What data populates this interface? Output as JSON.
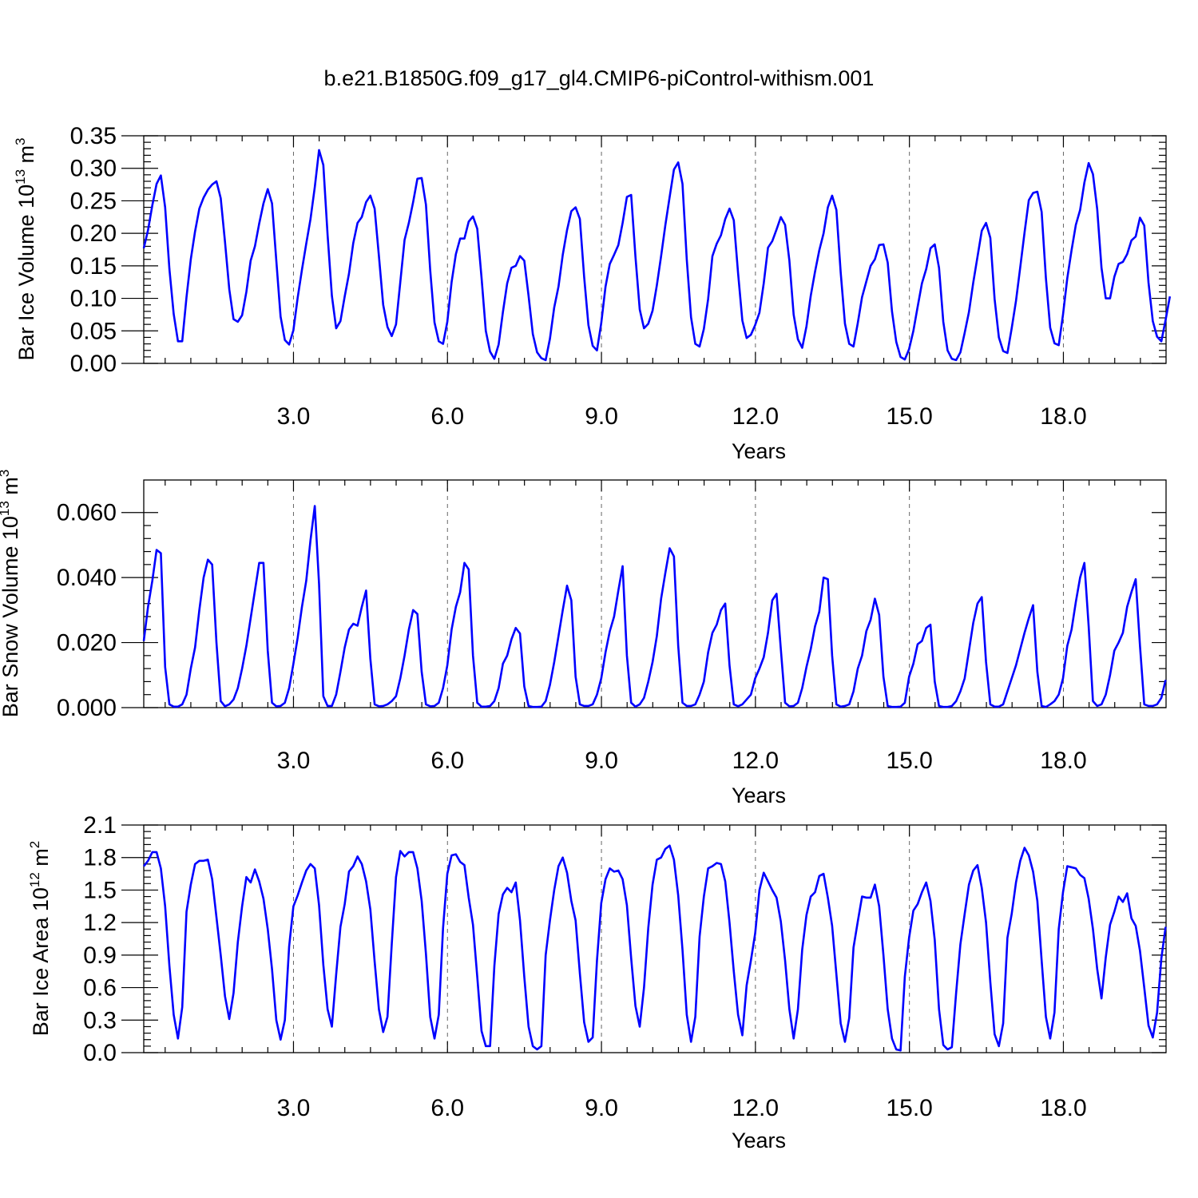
{
  "title": "b.e21.B1850G.f09_g17_gl4.CMIP6-piControl-withism.001",
  "colors": {
    "series": "#0000ff"
  },
  "chart_data": [
    {
      "type": "line",
      "ylabel": {
        "text": "Bar Ice Volume 10",
        "exp": "13",
        "unit_text": " m",
        "unit_exp": "3"
      },
      "xlabel": "Years",
      "xlim": [
        0.083,
        20.0
      ],
      "ylim": [
        0,
        0.35
      ],
      "xticks": [
        3,
        6,
        9,
        12,
        15,
        18
      ],
      "xtick_labels": [
        "3.0",
        "6.0",
        "9.0",
        "12.0",
        "15.0",
        "18.0"
      ],
      "yticks": [
        0,
        0.05,
        0.1,
        0.15,
        0.2,
        0.25,
        0.3,
        0.35
      ],
      "ytick_labels": [
        "0.00",
        "0.05",
        "0.10",
        "0.15",
        "0.20",
        "0.25",
        "0.30",
        "0.35"
      ],
      "grid": "vertical dashed at major x ticks",
      "start_year": 0.083,
      "step": 0.0833,
      "values": [
        0.177,
        0.205,
        0.243,
        0.276,
        0.289,
        0.24,
        0.145,
        0.076,
        0.034,
        0.034,
        0.102,
        0.16,
        0.203,
        0.238,
        0.255,
        0.267,
        0.275,
        0.28,
        0.254,
        0.187,
        0.114,
        0.068,
        0.064,
        0.074,
        0.11,
        0.158,
        0.18,
        0.215,
        0.246,
        0.268,
        0.246,
        0.158,
        0.072,
        0.036,
        0.029,
        0.051,
        0.101,
        0.144,
        0.184,
        0.222,
        0.271,
        0.328,
        0.305,
        0.197,
        0.104,
        0.054,
        0.065,
        0.103,
        0.138,
        0.185,
        0.216,
        0.225,
        0.248,
        0.258,
        0.238,
        0.165,
        0.09,
        0.056,
        0.042,
        0.06,
        0.125,
        0.19,
        0.216,
        0.248,
        0.284,
        0.285,
        0.244,
        0.143,
        0.063,
        0.034,
        0.03,
        0.064,
        0.125,
        0.168,
        0.192,
        0.192,
        0.218,
        0.226,
        0.207,
        0.132,
        0.05,
        0.018,
        0.007,
        0.029,
        0.079,
        0.123,
        0.147,
        0.15,
        0.165,
        0.158,
        0.104,
        0.045,
        0.017,
        0.008,
        0.005,
        0.038,
        0.086,
        0.118,
        0.167,
        0.205,
        0.234,
        0.24,
        0.222,
        0.133,
        0.059,
        0.027,
        0.02,
        0.062,
        0.118,
        0.153,
        0.167,
        0.182,
        0.216,
        0.256,
        0.259,
        0.164,
        0.083,
        0.054,
        0.061,
        0.081,
        0.12,
        0.165,
        0.213,
        0.256,
        0.298,
        0.309,
        0.276,
        0.16,
        0.071,
        0.03,
        0.026,
        0.053,
        0.099,
        0.165,
        0.184,
        0.197,
        0.222,
        0.238,
        0.22,
        0.139,
        0.066,
        0.039,
        0.044,
        0.059,
        0.078,
        0.123,
        0.178,
        0.188,
        0.206,
        0.225,
        0.213,
        0.158,
        0.075,
        0.037,
        0.024,
        0.057,
        0.104,
        0.141,
        0.174,
        0.2,
        0.24,
        0.258,
        0.236,
        0.14,
        0.061,
        0.03,
        0.026,
        0.062,
        0.102,
        0.126,
        0.15,
        0.16,
        0.182,
        0.183,
        0.155,
        0.08,
        0.033,
        0.01,
        0.006,
        0.022,
        0.05,
        0.087,
        0.123,
        0.145,
        0.177,
        0.183,
        0.147,
        0.064,
        0.02,
        0.007,
        0.005,
        0.017,
        0.047,
        0.079,
        0.124,
        0.164,
        0.204,
        0.216,
        0.193,
        0.099,
        0.04,
        0.019,
        0.016,
        0.054,
        0.096,
        0.148,
        0.201,
        0.251,
        0.262,
        0.264,
        0.233,
        0.131,
        0.055,
        0.031,
        0.028,
        0.075,
        0.131,
        0.174,
        0.213,
        0.236,
        0.278,
        0.308,
        0.291,
        0.237,
        0.147,
        0.1,
        0.1,
        0.133,
        0.153,
        0.156,
        0.168,
        0.189,
        0.195,
        0.224,
        0.212,
        0.124,
        0.065,
        0.041,
        0.034,
        0.067,
        0.103
      ]
    },
    {
      "type": "line",
      "ylabel": {
        "text": "Bar Snow Volume 10",
        "exp": "13",
        "unit_text": " m",
        "unit_exp": "3"
      },
      "xlabel": "Years",
      "xlim": [
        0.083,
        20.0
      ],
      "ylim": [
        0,
        0.07
      ],
      "xticks": [
        3,
        6,
        9,
        12,
        15,
        18
      ],
      "xtick_labels": [
        "3.0",
        "6.0",
        "9.0",
        "12.0",
        "15.0",
        "18.0"
      ],
      "yticks": [
        0,
        0.02,
        0.04,
        0.06
      ],
      "ytick_labels": [
        "0.000",
        "0.020",
        "0.040",
        "0.060"
      ],
      "grid": "vertical dashed at major x ticks",
      "start_year": 0.083,
      "step": 0.0833,
      "values": [
        0.0205,
        0.031,
        0.039,
        0.0485,
        0.0475,
        0.0125,
        0.001,
        0.0003,
        0.0003,
        0.001,
        0.004,
        0.012,
        0.0185,
        0.03,
        0.04,
        0.0455,
        0.044,
        0.02,
        0.002,
        0.0004,
        0.001,
        0.0025,
        0.006,
        0.012,
        0.019,
        0.0275,
        0.036,
        0.0445,
        0.0445,
        0.0175,
        0.0015,
        0.0004,
        0.0005,
        0.0015,
        0.006,
        0.0135,
        0.0215,
        0.031,
        0.039,
        0.0515,
        0.062,
        0.038,
        0.0035,
        0.0005,
        0.0005,
        0.004,
        0.011,
        0.0185,
        0.024,
        0.0258,
        0.0252,
        0.031,
        0.036,
        0.015,
        0.001,
        0.0004,
        0.0005,
        0.001,
        0.002,
        0.0035,
        0.009,
        0.016,
        0.024,
        0.03,
        0.0288,
        0.011,
        0.001,
        0.0004,
        0.0005,
        0.0015,
        0.006,
        0.013,
        0.024,
        0.031,
        0.0355,
        0.0445,
        0.0425,
        0.016,
        0.0015,
        0.0003,
        0.0003,
        0.0005,
        0.002,
        0.006,
        0.0135,
        0.016,
        0.021,
        0.0245,
        0.0228,
        0.0065,
        0.0005,
        0.0002,
        0.0002,
        0.0003,
        0.002,
        0.007,
        0.014,
        0.022,
        0.03,
        0.0375,
        0.033,
        0.0095,
        0.001,
        0.0005,
        0.0005,
        0.001,
        0.004,
        0.009,
        0.017,
        0.0235,
        0.028,
        0.036,
        0.0435,
        0.016,
        0.0015,
        0.0003,
        0.001,
        0.003,
        0.008,
        0.014,
        0.022,
        0.0335,
        0.0415,
        0.049,
        0.0465,
        0.019,
        0.0015,
        0.0005,
        0.0005,
        0.001,
        0.004,
        0.008,
        0.017,
        0.023,
        0.0255,
        0.03,
        0.032,
        0.013,
        0.001,
        0.0004,
        0.001,
        0.0025,
        0.004,
        0.009,
        0.012,
        0.0155,
        0.023,
        0.033,
        0.035,
        0.018,
        0.0015,
        0.0004,
        0.0005,
        0.0015,
        0.006,
        0.0125,
        0.018,
        0.025,
        0.0295,
        0.04,
        0.0395,
        0.016,
        0.001,
        0.0003,
        0.0005,
        0.001,
        0.005,
        0.012,
        0.016,
        0.0235,
        0.027,
        0.0335,
        0.0285,
        0.0095,
        0.0005,
        0.0002,
        0.0002,
        0.0003,
        0.0015,
        0.0095,
        0.0135,
        0.0195,
        0.0205,
        0.0245,
        0.0255,
        0.008,
        0.0005,
        0.0002,
        0.0002,
        0.0005,
        0.002,
        0.005,
        0.009,
        0.0175,
        0.026,
        0.032,
        0.034,
        0.014,
        0.001,
        0.0003,
        0.0003,
        0.001,
        0.005,
        0.009,
        0.013,
        0.018,
        0.023,
        0.0275,
        0.0315,
        0.011,
        0.0005,
        0.0002,
        0.001,
        0.002,
        0.004,
        0.009,
        0.019,
        0.024,
        0.0325,
        0.04,
        0.0445,
        0.025,
        0.002,
        0.0005,
        0.001,
        0.004,
        0.01,
        0.0175,
        0.02,
        0.023,
        0.031,
        0.0355,
        0.0395,
        0.019,
        0.001,
        0.0005,
        0.0005,
        0.001,
        0.003,
        0.0085
      ]
    },
    {
      "type": "line",
      "ylabel": {
        "text": "Bar Ice Area 10",
        "exp": "12",
        "unit_text": " m",
        "unit_exp": "2"
      },
      "xlabel": "Years",
      "xlim": [
        0.083,
        20.0
      ],
      "ylim": [
        0,
        2.1
      ],
      "xticks": [
        3,
        6,
        9,
        12,
        15,
        18
      ],
      "xtick_labels": [
        "3.0",
        "6.0",
        "9.0",
        "12.0",
        "15.0",
        "18.0"
      ],
      "yticks": [
        0,
        0.3,
        0.6,
        0.9,
        1.2,
        1.5,
        1.8,
        2.1
      ],
      "ytick_labels": [
        "0.0",
        "0.3",
        "0.6",
        "0.9",
        "1.2",
        "1.5",
        "1.8",
        "2.1"
      ],
      "grid": "vertical dashed at major x ticks",
      "start_year": 0.083,
      "step": 0.0833,
      "values": [
        1.72,
        1.77,
        1.85,
        1.85,
        1.7,
        1.35,
        0.8,
        0.35,
        0.13,
        0.42,
        1.3,
        1.55,
        1.74,
        1.77,
        1.77,
        1.78,
        1.6,
        1.25,
        0.9,
        0.52,
        0.31,
        0.55,
        1.02,
        1.35,
        1.62,
        1.57,
        1.69,
        1.58,
        1.42,
        1.14,
        0.77,
        0.3,
        0.12,
        0.3,
        0.98,
        1.35,
        1.45,
        1.57,
        1.68,
        1.74,
        1.7,
        1.36,
        0.81,
        0.4,
        0.24,
        0.72,
        1.16,
        1.37,
        1.67,
        1.72,
        1.81,
        1.74,
        1.58,
        1.32,
        0.84,
        0.4,
        0.19,
        0.33,
        1.0,
        1.62,
        1.86,
        1.81,
        1.85,
        1.85,
        1.7,
        1.4,
        0.91,
        0.33,
        0.13,
        0.35,
        1.15,
        1.65,
        1.82,
        1.83,
        1.76,
        1.73,
        1.43,
        1.18,
        0.7,
        0.2,
        0.06,
        0.06,
        0.8,
        1.28,
        1.46,
        1.52,
        1.48,
        1.57,
        1.22,
        0.7,
        0.24,
        0.06,
        0.03,
        0.06,
        0.9,
        1.22,
        1.5,
        1.72,
        1.8,
        1.66,
        1.4,
        1.22,
        0.73,
        0.28,
        0.1,
        0.14,
        0.85,
        1.38,
        1.6,
        1.7,
        1.67,
        1.68,
        1.6,
        1.36,
        0.87,
        0.43,
        0.24,
        0.6,
        1.15,
        1.55,
        1.78,
        1.8,
        1.88,
        1.91,
        1.78,
        1.45,
        0.95,
        0.35,
        0.1,
        0.33,
        1.07,
        1.44,
        1.7,
        1.72,
        1.75,
        1.74,
        1.58,
        1.2,
        0.75,
        0.35,
        0.16,
        0.62,
        0.85,
        1.1,
        1.5,
        1.66,
        1.58,
        1.5,
        1.43,
        1.21,
        0.85,
        0.4,
        0.13,
        0.4,
        0.95,
        1.27,
        1.44,
        1.48,
        1.63,
        1.65,
        1.43,
        1.17,
        0.72,
        0.27,
        0.1,
        0.32,
        0.97,
        1.21,
        1.44,
        1.43,
        1.43,
        1.55,
        1.35,
        0.9,
        0.4,
        0.13,
        0.03,
        0.02,
        0.7,
        1.06,
        1.31,
        1.37,
        1.48,
        1.57,
        1.4,
        1.04,
        0.4,
        0.07,
        0.03,
        0.05,
        0.55,
        1.0,
        1.28,
        1.55,
        1.68,
        1.73,
        1.52,
        1.2,
        0.65,
        0.17,
        0.06,
        0.27,
        1.06,
        1.28,
        1.57,
        1.77,
        1.89,
        1.82,
        1.67,
        1.4,
        0.85,
        0.33,
        0.13,
        0.37,
        1.14,
        1.48,
        1.72,
        1.71,
        1.7,
        1.64,
        1.61,
        1.42,
        1.14,
        0.77,
        0.5,
        0.88,
        1.18,
        1.3,
        1.44,
        1.39,
        1.47,
        1.24,
        1.17,
        0.94,
        0.6,
        0.25,
        0.14,
        0.37,
        0.87,
        1.16
      ]
    }
  ]
}
